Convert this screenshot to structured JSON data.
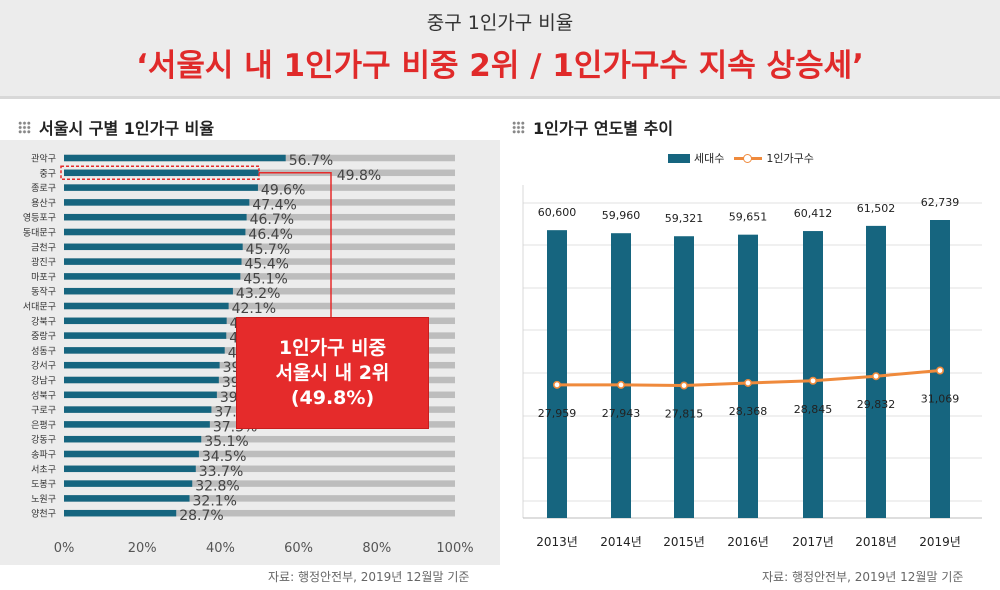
{
  "header": {
    "subtitle": "중구 1인가구 비율",
    "title": "‘서울시 내 1인가구 비중 2위 / 1인가구수 지속 상승세’"
  },
  "left": {
    "section_title": "서울시 구별 1인가구 비율",
    "source": "자료: 행정안전부, 2019년 12월말 기준",
    "callout": [
      "1인가구 비중",
      "서울시 내 2위",
      "(49.8%)"
    ]
  },
  "right": {
    "section_title": "1인가구 연도별 추이",
    "source": "자료: 행정안전부, 2019년 12월말 기준",
    "legend": [
      "세대수",
      "1인가구수"
    ]
  },
  "colors": {
    "bar": "#16657f",
    "track": "#bdbdbd",
    "line": "#ef8a3c",
    "highlight": "#e52b2b"
  },
  "chart_data": [
    {
      "type": "bar",
      "orientation": "horizontal",
      "title": "서울시 구별 1인가구 비율",
      "categories": [
        "관악구",
        "중구",
        "종로구",
        "용산구",
        "영등포구",
        "동대문구",
        "금천구",
        "광진구",
        "마포구",
        "동작구",
        "서대문구",
        "강북구",
        "중랑구",
        "성동구",
        "강서구",
        "강남구",
        "성북구",
        "구로구",
        "은평구",
        "강동구",
        "송파구",
        "서초구",
        "도봉구",
        "노원구",
        "양천구"
      ],
      "values": [
        56.7,
        49.8,
        49.6,
        47.4,
        46.7,
        46.4,
        45.7,
        45.4,
        45.1,
        43.2,
        42.1,
        41.6,
        41.5,
        41.1,
        39.8,
        39.6,
        39.1,
        37.7,
        37.3,
        35.1,
        34.5,
        33.7,
        32.8,
        32.1,
        28.7
      ],
      "value_labels": [
        "56.7%",
        "49.8%",
        "49.6%",
        "47.4%",
        "46.7%",
        "46.4%",
        "45.7%",
        "45.4%",
        "45.1%",
        "43.2%",
        "42.1%",
        "41.6%",
        "41.5%",
        "41.1%",
        "39.8%",
        "39.6%",
        "39.1%",
        "37.7%",
        "37.3%",
        "35.1%",
        "34.5%",
        "33.7%",
        "32.8%",
        "32.1%",
        "28.7%"
      ],
      "xlim": [
        0,
        100
      ],
      "xticks": [
        "0%",
        "20%",
        "40%",
        "60%",
        "80%",
        "100%"
      ],
      "highlight": "중구"
    },
    {
      "type": "bar",
      "title": "1인가구 연도별 추이",
      "categories": [
        "2013년",
        "2014년",
        "2015년",
        "2016년",
        "2017년",
        "2018년",
        "2019년"
      ],
      "series": [
        {
          "name": "세대수",
          "type": "bar",
          "values": [
            60600,
            59960,
            59321,
            59651,
            60412,
            61502,
            62739
          ],
          "labels": [
            "60,600",
            "59,960",
            "59,321",
            "59,651",
            "60,412",
            "61,502",
            "62,739"
          ]
        },
        {
          "name": "1인가구수",
          "type": "line",
          "values": [
            27959,
            27943,
            27815,
            28368,
            28845,
            29832,
            31069
          ],
          "labels": [
            "27,959",
            "27,943",
            "27,815",
            "28,368",
            "28,845",
            "29,832",
            "31,069"
          ]
        }
      ],
      "legend_position": "top"
    }
  ]
}
